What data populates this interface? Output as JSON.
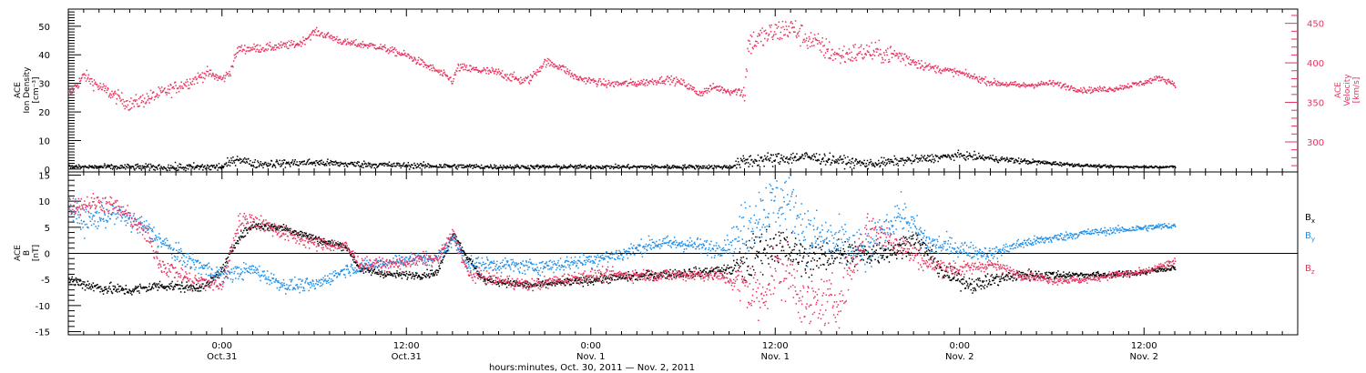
{
  "colors": {
    "black": "#000000",
    "velocity": "#e8335e",
    "by": "#1f8fe8",
    "bz": "#e8335e"
  },
  "time": {
    "start_hours": -10,
    "end_hours": 70,
    "data_end_hours": 62,
    "ticks": [
      {
        "hours": 0,
        "line1": "0:00",
        "line2": "Oct.31"
      },
      {
        "hours": 12,
        "line1": "12:00",
        "line2": "Oct.31"
      },
      {
        "hours": 24,
        "line1": "0:00",
        "line2": "Nov. 1"
      },
      {
        "hours": 36,
        "line1": "12:00",
        "line2": "Nov. 1"
      },
      {
        "hours": 48,
        "line1": "0:00",
        "line2": "Nov. 2"
      },
      {
        "hours": 60,
        "line1": "12:00",
        "line2": "Nov. 2"
      }
    ],
    "axis_label": "hours:minutes, Oct. 30, 2011 — Nov.  2, 2011"
  },
  "chart_data": [
    {
      "type": "scatter",
      "panel": "top",
      "ylabel_left": [
        "ACE",
        "Ion Density",
        "[cm⁻³]"
      ],
      "ylabel_right": [
        "ACE",
        "Velocity",
        "[km/s]"
      ],
      "ylim_left": [
        -1,
        56
      ],
      "yticks_left": [
        0,
        10,
        20,
        30,
        40,
        50
      ],
      "ylim_right": [
        262,
        468
      ],
      "yticks_right": [
        300,
        350,
        400,
        450
      ],
      "series": [
        {
          "key": "velocity",
          "axis": "right",
          "color_key": "velocity",
          "knots": [
            [
              -10,
              360
            ],
            [
              -9,
              385
            ],
            [
              -8,
              370
            ],
            [
              -6,
              348
            ],
            [
              -4,
              362
            ],
            [
              -2,
              378
            ],
            [
              -1,
              388
            ],
            [
              0,
              380
            ],
            [
              0.5,
              390
            ],
            [
              1,
              418
            ],
            [
              3,
              420
            ],
            [
              5,
              425
            ],
            [
              6,
              440
            ],
            [
              7,
              434
            ],
            [
              8,
              426
            ],
            [
              10,
              422
            ],
            [
              12,
              410
            ],
            [
              14,
              390
            ],
            [
              15,
              378
            ],
            [
              15.3,
              395
            ],
            [
              18,
              388
            ],
            [
              19.5,
              378
            ],
            [
              20,
              380
            ],
            [
              21,
              402
            ],
            [
              22,
              396
            ],
            [
              23,
              382
            ],
            [
              25,
              374
            ],
            [
              27,
              375
            ],
            [
              29,
              380
            ],
            [
              30,
              375
            ],
            [
              31,
              362
            ],
            [
              32,
              370
            ],
            [
              33,
              365
            ],
            [
              34,
              365
            ],
            [
              34.2,
              425
            ],
            [
              36,
              440
            ],
            [
              37,
              445
            ],
            [
              38,
              432
            ],
            [
              40,
              410
            ],
            [
              42,
              415
            ],
            [
              44,
              410
            ],
            [
              46,
              395
            ],
            [
              48,
              388
            ],
            [
              50,
              376
            ],
            [
              52,
              372
            ],
            [
              54,
              375
            ],
            [
              56,
              366
            ],
            [
              58,
              368
            ],
            [
              60,
              376
            ],
            [
              61,
              382
            ],
            [
              62,
              374
            ]
          ],
          "noise": [
            [
              -10,
              6
            ],
            [
              -5,
              8
            ],
            [
              0,
              5
            ],
            [
              6,
              4
            ],
            [
              12,
              4
            ],
            [
              18,
              5
            ],
            [
              24,
              4
            ],
            [
              33.5,
              4
            ],
            [
              34,
              14
            ],
            [
              44,
              10
            ],
            [
              46,
              4
            ],
            [
              56,
              3
            ],
            [
              62,
              3
            ]
          ]
        },
        {
          "key": "density",
          "axis": "left",
          "color_key": "black",
          "knots": [
            [
              -10,
              1
            ],
            [
              -3,
              0.8
            ],
            [
              0,
              1
            ],
            [
              1,
              4
            ],
            [
              2,
              2
            ],
            [
              6,
              2.5
            ],
            [
              8,
              2
            ],
            [
              12,
              1.5
            ],
            [
              15,
              1.2
            ],
            [
              18,
              1
            ],
            [
              24,
              1
            ],
            [
              33,
              1
            ],
            [
              34,
              3
            ],
            [
              38,
              4.5
            ],
            [
              42,
              2
            ],
            [
              44,
              3
            ],
            [
              46,
              4
            ],
            [
              48,
              5
            ],
            [
              52,
              3
            ],
            [
              56,
              1.5
            ],
            [
              58,
              1
            ],
            [
              62,
              1
            ]
          ],
          "noise": [
            [
              -10,
              0.6
            ],
            [
              0,
              1.3
            ],
            [
              8,
              1
            ],
            [
              20,
              0.6
            ],
            [
              33,
              0.6
            ],
            [
              34,
              2.2
            ],
            [
              40,
              1.5
            ],
            [
              50,
              1
            ],
            [
              56,
              0.4
            ],
            [
              62,
              0.3
            ]
          ]
        }
      ]
    },
    {
      "type": "scatter",
      "panel": "bottom",
      "ylabel_left": [
        "ACE",
        "B",
        "[nT]"
      ],
      "ylim": [
        -15.6,
        15.6
      ],
      "yticks": [
        -15,
        -10,
        -5,
        0,
        5,
        10,
        15
      ],
      "legend_labels": [
        {
          "base": "B",
          "sub": "x",
          "color_key": "black"
        },
        {
          "base": "B",
          "sub": "y",
          "color_key": "by"
        },
        {
          "base": "B",
          "sub": "z",
          "color_key": "bz"
        }
      ],
      "series": [
        {
          "key": "bx",
          "color_key": "black",
          "knots": [
            [
              -10,
              -5
            ],
            [
              -8,
              -6.5
            ],
            [
              -6,
              -7
            ],
            [
              -4,
              -6
            ],
            [
              -2,
              -6.5
            ],
            [
              -1,
              -6
            ],
            [
              0,
              -3
            ],
            [
              1,
              3
            ],
            [
              2,
              5.5
            ],
            [
              4,
              5
            ],
            [
              6,
              3
            ],
            [
              7,
              2
            ],
            [
              8,
              1.5
            ],
            [
              9,
              -3
            ],
            [
              11,
              -4
            ],
            [
              13,
              -4
            ],
            [
              14,
              -3.5
            ],
            [
              15,
              4
            ],
            [
              16,
              -1
            ],
            [
              17,
              -5
            ],
            [
              20,
              -6
            ],
            [
              24,
              -5
            ],
            [
              28,
              -4
            ],
            [
              31,
              -3.5
            ],
            [
              33,
              -3
            ],
            [
              34,
              -2
            ],
            [
              35,
              1
            ],
            [
              36,
              2
            ],
            [
              38,
              -1
            ],
            [
              40,
              0
            ],
            [
              42,
              0
            ],
            [
              44,
              1
            ],
            [
              45,
              3
            ],
            [
              46,
              0
            ],
            [
              47,
              -4
            ],
            [
              48,
              -5
            ],
            [
              49,
              -6
            ],
            [
              50,
              -5
            ],
            [
              52,
              -4
            ],
            [
              54,
              -4
            ],
            [
              56,
              -4
            ],
            [
              58,
              -4
            ],
            [
              60,
              -3.5
            ],
            [
              62,
              -2.5
            ]
          ],
          "noise": [
            [
              -10,
              1
            ],
            [
              0,
              0.7
            ],
            [
              8,
              0.6
            ],
            [
              16,
              0.6
            ],
            [
              33,
              0.8
            ],
            [
              34,
              3.5
            ],
            [
              42,
              2
            ],
            [
              48,
              1.3
            ],
            [
              56,
              0.5
            ],
            [
              62,
              0.5
            ]
          ]
        },
        {
          "key": "by",
          "color_key": "by",
          "knots": [
            [
              -10,
              9
            ],
            [
              -9,
              6
            ],
            [
              -7,
              8
            ],
            [
              -5,
              5
            ],
            [
              -3,
              0
            ],
            [
              -1,
              -3
            ],
            [
              0,
              -4
            ],
            [
              2,
              -3
            ],
            [
              4,
              -6
            ],
            [
              6,
              -6
            ],
            [
              8,
              -3
            ],
            [
              10,
              -2
            ],
            [
              12,
              -1
            ],
            [
              14,
              -1
            ],
            [
              15,
              3
            ],
            [
              16,
              -2
            ],
            [
              18,
              -2
            ],
            [
              20,
              -2.5
            ],
            [
              22,
              -2
            ],
            [
              24,
              -1
            ],
            [
              26,
              0
            ],
            [
              28,
              2
            ],
            [
              30,
              2
            ],
            [
              32,
              1
            ],
            [
              33,
              2
            ],
            [
              34,
              5
            ],
            [
              35,
              8
            ],
            [
              36,
              10
            ],
            [
              37,
              10
            ],
            [
              38,
              4
            ],
            [
              40,
              2
            ],
            [
              42,
              0
            ],
            [
              44,
              8
            ],
            [
              46,
              2
            ],
            [
              48,
              1
            ],
            [
              50,
              0
            ],
            [
              52,
              2
            ],
            [
              54,
              3
            ],
            [
              56,
              4
            ],
            [
              58,
              4.5
            ],
            [
              60,
              5
            ],
            [
              62,
              5.5
            ]
          ],
          "noise": [
            [
              -10,
              2
            ],
            [
              0,
              1.3
            ],
            [
              8,
              1
            ],
            [
              16,
              1.2
            ],
            [
              30,
              1.2
            ],
            [
              33,
              1.5
            ],
            [
              34,
              5
            ],
            [
              40,
              4
            ],
            [
              46,
              2
            ],
            [
              50,
              1
            ],
            [
              56,
              0.6
            ],
            [
              62,
              0.5
            ]
          ]
        },
        {
          "key": "bz",
          "color_key": "bz",
          "knots": [
            [
              -10,
              9
            ],
            [
              -8,
              10
            ],
            [
              -7,
              9
            ],
            [
              -6,
              7
            ],
            [
              -5,
              4
            ],
            [
              -4,
              -2
            ],
            [
              -2,
              -5
            ],
            [
              0,
              -6
            ],
            [
              1,
              6
            ],
            [
              2,
              6.5
            ],
            [
              4,
              4
            ],
            [
              6,
              2
            ],
            [
              8,
              1.5
            ],
            [
              9,
              -2
            ],
            [
              11,
              -2
            ],
            [
              13,
              -1
            ],
            [
              14,
              -1
            ],
            [
              15,
              4
            ],
            [
              16,
              -4
            ],
            [
              18,
              -5
            ],
            [
              20,
              -6
            ],
            [
              22,
              -5
            ],
            [
              24,
              -4
            ],
            [
              28,
              -4
            ],
            [
              32,
              -4
            ],
            [
              34,
              -6
            ],
            [
              35,
              -8
            ],
            [
              36,
              -3
            ],
            [
              37,
              -4
            ],
            [
              38,
              -10
            ],
            [
              40,
              -9
            ],
            [
              42,
              5
            ],
            [
              44,
              2
            ],
            [
              46,
              -2
            ],
            [
              48,
              -3
            ],
            [
              50,
              -2
            ],
            [
              52,
              -4
            ],
            [
              54,
              -5
            ],
            [
              56,
              -5
            ],
            [
              58,
              -4
            ],
            [
              60,
              -3.5
            ],
            [
              62,
              -1.5
            ]
          ],
          "noise": [
            [
              -10,
              1.5
            ],
            [
              0,
              1.5
            ],
            [
              8,
              1
            ],
            [
              16,
              1
            ],
            [
              30,
              1
            ],
            [
              33,
              1
            ],
            [
              34,
              5
            ],
            [
              40,
              4
            ],
            [
              46,
              1.5
            ],
            [
              50,
              0.8
            ],
            [
              56,
              0.6
            ],
            [
              62,
              0.6
            ]
          ]
        }
      ]
    }
  ]
}
